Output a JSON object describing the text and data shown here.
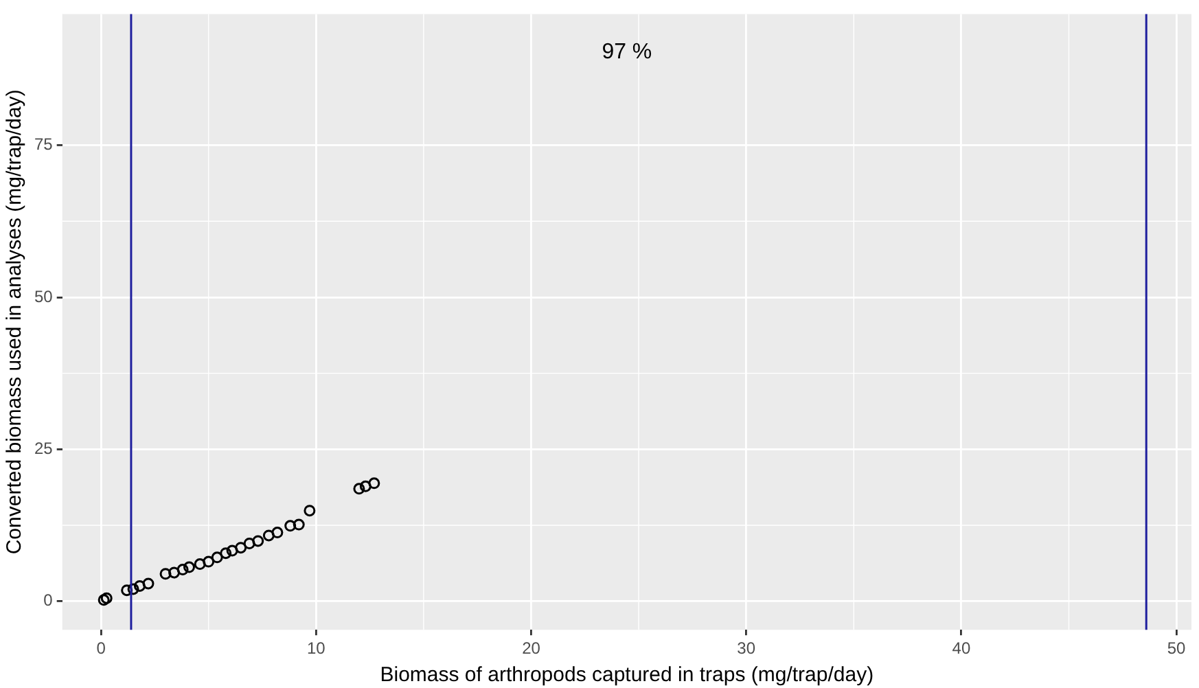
{
  "chart_data": {
    "type": "scatter",
    "xlabel": "Biomass of arthropods captured in traps (mg/trap/day)",
    "ylabel": "Converted biomass used in analyses (mg/trap/day)",
    "annotations": [
      "97 %"
    ],
    "series": [
      {
        "color": "#000000",
        "x": [
          0.13,
          0.26,
          1.2,
          1.5,
          1.8,
          2.2,
          3.0,
          3.4,
          3.8,
          4.1,
          4.6,
          5.0,
          5.4,
          5.8,
          6.1,
          6.5,
          6.9,
          7.3,
          7.8,
          8.2,
          8.8,
          9.2,
          9.7,
          12.0,
          12.3,
          12.7
        ],
        "values": [
          0.2,
          0.5,
          1.8,
          2.0,
          2.5,
          2.9,
          4.5,
          4.7,
          5.2,
          5.6,
          6.1,
          6.5,
          7.2,
          7.9,
          8.3,
          8.8,
          9.5,
          9.9,
          10.8,
          11.3,
          12.4,
          12.6,
          14.9,
          18.5,
          18.9,
          19.4
        ]
      }
    ],
    "xlim": [
      -1.8,
      50.7
    ],
    "xticks": [
      0,
      10,
      20,
      30,
      40,
      50
    ],
    "ylim": [
      -4.7,
      96.6
    ],
    "yticks": [
      0,
      25,
      50,
      75
    ],
    "ref_lines": [
      {
        "axis": "x",
        "value": 1.4,
        "color": "#1f1f9e"
      },
      {
        "axis": "x",
        "value": 48.6,
        "color": "#1f1f9e"
      }
    ],
    "grid": true,
    "marker": "circle",
    "legend": false
  }
}
